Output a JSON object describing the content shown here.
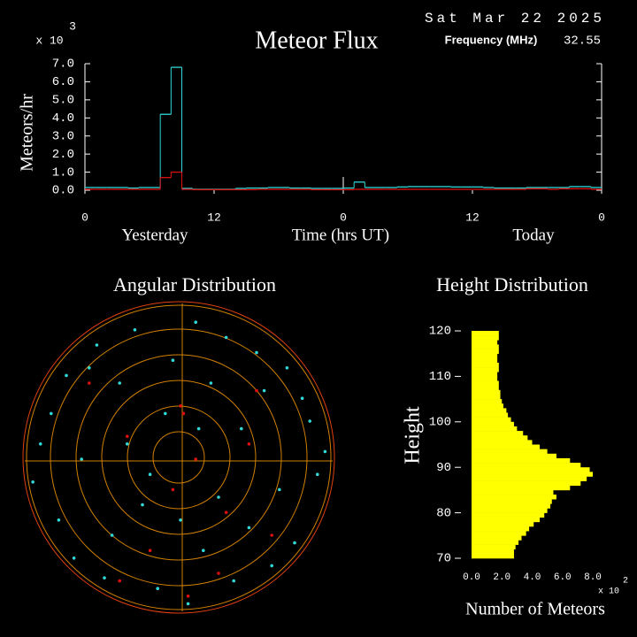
{
  "date": "Sat Mar 22 2025",
  "frequency_label": "Frequency (MHz)",
  "frequency": "32.55",
  "chart_data": [
    {
      "type": "step",
      "title": "Meteor Flux",
      "ylabel": "Meteors/hr",
      "xlabel": "Time (hrs UT)",
      "multiplier": "x 10",
      "exponent": "3",
      "day_labels": [
        "Yesterday",
        "Today"
      ],
      "x": [
        0,
        1,
        2,
        3,
        4,
        5,
        6,
        7,
        8,
        9,
        10,
        11,
        12,
        13,
        14,
        15,
        16,
        17,
        18,
        19,
        20,
        21,
        22,
        23,
        24,
        25,
        26,
        27,
        28,
        29,
        30,
        31,
        32,
        33,
        34,
        35,
        36,
        37,
        38,
        39,
        40,
        41,
        42,
        43,
        44,
        45,
        46,
        47
      ],
      "xlim": [
        0,
        48
      ],
      "xticks": [
        0,
        12,
        {
          "value": 24,
          "label": "0"
        },
        {
          "value": 36,
          "label": "12"
        },
        {
          "value": 48,
          "label": "0"
        }
      ],
      "ylim": [
        0,
        7
      ],
      "yticks": [
        {
          "value": 0,
          "label": "0.0"
        },
        {
          "value": 1,
          "label": "1.0"
        },
        {
          "value": 2,
          "label": "2.0"
        },
        {
          "value": 3,
          "label": "3.0"
        },
        {
          "value": 4,
          "label": "4.0"
        },
        {
          "value": 5,
          "label": "5.0"
        },
        {
          "value": 6,
          "label": "6.0"
        },
        {
          "value": 7,
          "label": "7.0"
        }
      ],
      "series": [
        {
          "color": "#30d8d8",
          "values": [
            0.15,
            0.15,
            0.15,
            0.15,
            0.12,
            0.15,
            0.15,
            4.2,
            6.8,
            0.1,
            0.05,
            0.05,
            0.05,
            0.05,
            0.1,
            0.12,
            0.12,
            0.15,
            0.15,
            0.12,
            0.12,
            0.1,
            0.1,
            0.1,
            0.12,
            0.45,
            0.15,
            0.15,
            0.15,
            0.18,
            0.2,
            0.2,
            0.2,
            0.2,
            0.18,
            0.18,
            0.18,
            0.15,
            0.12,
            0.12,
            0.12,
            0.15,
            0.15,
            0.15,
            0.15,
            0.2,
            0.2,
            0.15
          ]
        },
        {
          "color": "#e01010",
          "values": [
            0.05,
            0.05,
            0.05,
            0.05,
            0.05,
            0.05,
            0.05,
            0.7,
            1.0,
            0.05,
            0.03,
            0.03,
            0.03,
            0.03,
            0.03,
            0.03,
            0.05,
            0.05,
            0.05,
            0.05,
            0.05,
            0.03,
            0.03,
            0.03,
            0.03,
            0.05,
            0.05,
            0.05,
            0.05,
            0.05,
            0.05,
            0.05,
            0.05,
            0.05,
            0.05,
            0.05,
            0.05,
            0.05,
            0.05,
            0.05,
            0.05,
            0.08,
            0.08,
            0.05,
            0.08,
            0.08,
            0.08,
            0.05
          ]
        }
      ]
    },
    {
      "type": "polar-scatter",
      "title": "Angular Distribution",
      "xlim": [
        -1,
        1
      ],
      "ylim": [
        -1,
        1
      ],
      "series": [
        {
          "color": "#30d8d8",
          "x": [
            0.1,
            -0.3,
            0.5,
            -0.6,
            0.8,
            -0.85,
            0.2,
            -0.1,
            0.65,
            -0.45,
            0.35,
            -0.7,
            0.9,
            -0.92,
            0.05,
            0.4,
            -0.25,
            0.7,
            -0.55,
            0.15,
            -0.8,
            0.6,
            -0.35,
            0.25,
            -0.05,
            0.45,
            -0.65,
            0.85,
            -0.15,
            0.55,
            -0.4,
            0.3,
            -0.75,
            0.75,
            0.0,
            -0.5,
            0.12,
            -0.2,
            0.95,
            -0.97
          ],
          "y": [
            0.9,
            0.85,
            0.7,
            0.6,
            0.4,
            0.3,
            0.5,
            0.3,
            -0.2,
            -0.5,
            -0.8,
            -0.65,
            -0.1,
            0.1,
            -0.95,
            0.2,
            -0.3,
            0.6,
            0.75,
            -0.6,
            -0.4,
            -0.7,
            0.1,
            -0.25,
            0.65,
            -0.45,
            0.0,
            0.25,
            -0.85,
            0.45,
            0.5,
            0.8,
            0.55,
            -0.55,
            -0.4,
            -0.78,
            0.2,
            -0.1,
            0.05,
            -0.15
          ]
        },
        {
          "color": "#e01010",
          "x": [
            0.0,
            0.02,
            -0.05,
            0.5,
            -0.6,
            0.3,
            -0.2,
            0.25,
            0.6,
            -0.4,
            0.1,
            0.45,
            -0.35,
            0.05
          ],
          "y": [
            0.35,
            0.3,
            -0.2,
            0.45,
            0.5,
            -0.35,
            -0.6,
            -0.75,
            -0.5,
            -0.8,
            0.0,
            0.1,
            0.15,
            -0.9
          ]
        }
      ]
    },
    {
      "type": "histogram",
      "orientation": "horizontal",
      "title": "Height Distribution",
      "ylabel": "Height",
      "xlabel": "Number of Meteors",
      "multiplier": "x 10",
      "exponent": "2",
      "color": "#ffff00",
      "bins": [
        70,
        71,
        72,
        73,
        74,
        75,
        76,
        77,
        78,
        79,
        80,
        81,
        82,
        83,
        84,
        85,
        86,
        87,
        88,
        89,
        90,
        91,
        92,
        93,
        94,
        95,
        96,
        97,
        98,
        99,
        100,
        101,
        102,
        103,
        104,
        105,
        106,
        107,
        108,
        109,
        110,
        111,
        112,
        113,
        114,
        115,
        116,
        117,
        118,
        119,
        120
      ],
      "values": [
        2.8,
        2.8,
        2.9,
        3.1,
        3.3,
        3.6,
        3.8,
        4.1,
        4.5,
        4.8,
        5.0,
        5.2,
        5.3,
        5.6,
        5.4,
        6.5,
        7.2,
        7.6,
        8.0,
        7.8,
        7.2,
        6.5,
        5.6,
        5.0,
        4.5,
        4.0,
        3.7,
        3.4,
        3.0,
        2.8,
        2.6,
        2.4,
        2.3,
        2.1,
        2.0,
        1.9,
        1.9,
        1.8,
        1.8,
        1.7,
        1.7,
        1.8,
        1.8,
        1.7,
        1.7,
        1.8,
        1.8,
        1.7,
        1.8,
        1.8
      ],
      "xlim": [
        0,
        8
      ],
      "xticks": [
        {
          "value": 0,
          "label": "0.0"
        },
        {
          "value": 2,
          "label": "2.0"
        },
        {
          "value": 4,
          "label": "4.0"
        },
        {
          "value": 6,
          "label": "6.0"
        },
        {
          "value": 8,
          "label": "8.0"
        }
      ],
      "ylim": [
        70,
        120
      ],
      "yticks": [
        70,
        80,
        90,
        100,
        110,
        120
      ]
    }
  ]
}
